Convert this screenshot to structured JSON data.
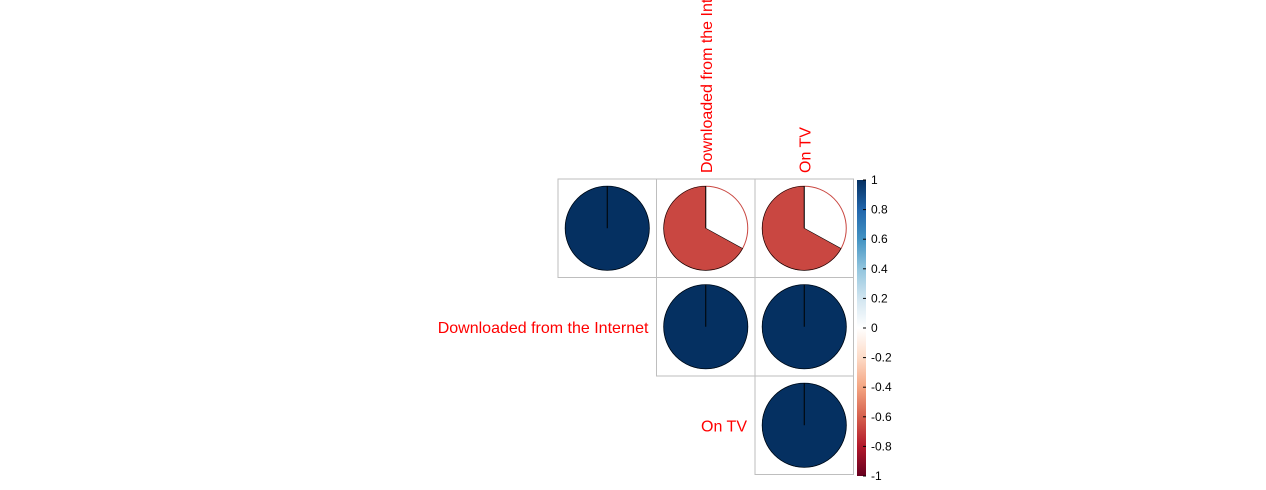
{
  "chart_data": {
    "type": "heatmap",
    "subtype": "correlation-matrix-pie",
    "layout": "upper-triangle",
    "variables": [
      "",
      "Downloaded from the Internet",
      "On TV"
    ],
    "column_labels_visible": [
      "Downloaded from the Int",
      "On TV"
    ],
    "row_labels_visible": [
      "Downloaded from the Internet",
      "On TV"
    ],
    "cells": [
      {
        "row": 0,
        "col": 0,
        "value": 1.0
      },
      {
        "row": 0,
        "col": 1,
        "value": -0.67
      },
      {
        "row": 0,
        "col": 2,
        "value": -0.67
      },
      {
        "row": 1,
        "col": 1,
        "value": 1.0
      },
      {
        "row": 1,
        "col": 2,
        "value": 1.0
      },
      {
        "row": 2,
        "col": 2,
        "value": 1.0
      }
    ],
    "colorbar": {
      "ticks": [
        "1",
        "0.8",
        "0.6",
        "0.4",
        "0.2",
        "0",
        "-0.2",
        "-0.4",
        "-0.6",
        "-0.8",
        "-1"
      ],
      "range": [
        -1,
        1
      ],
      "palette": [
        "#67001F",
        "#B2182B",
        "#D6604D",
        "#F4A582",
        "#FDDBC7",
        "#FFFFFF",
        "#D1E5F0",
        "#92C5DE",
        "#4393C3",
        "#2166AC",
        "#053061"
      ]
    },
    "label_color": "#FF0000",
    "grid": true
  }
}
